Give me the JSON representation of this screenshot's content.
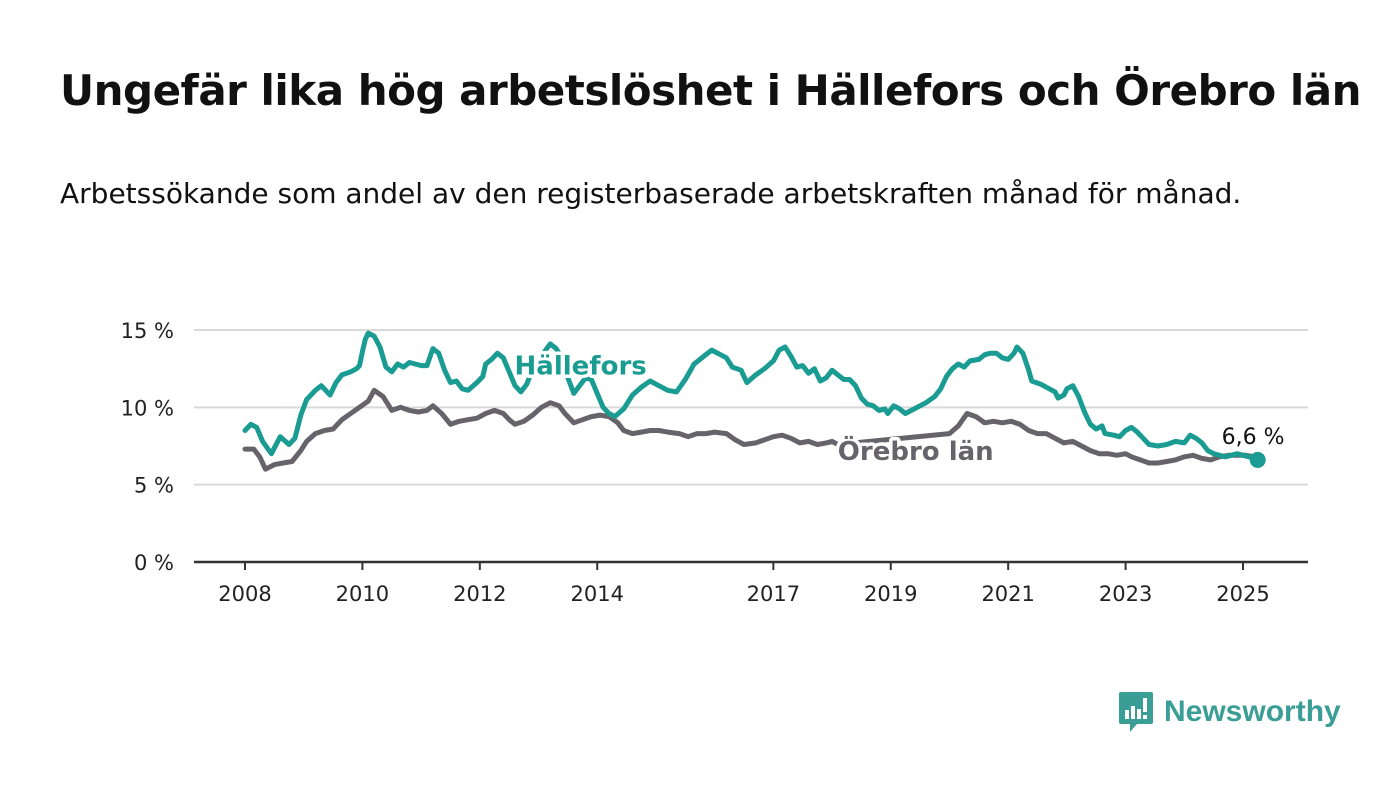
{
  "title": "Ungefär lika hög arbetslöshet i Hällefors och Örebro län",
  "subtitle": "Arbetssökande som andel av den registerbaserade arbetskraften månad för månad.",
  "brand": {
    "name": "Newsworthy",
    "icon": "newsworthy-logo-icon",
    "color": "#3a9e96"
  },
  "chart_data": {
    "type": "line",
    "xlim": [
      2008,
      2025.83
    ],
    "ylim": [
      0,
      15
    ],
    "x_ticks": [
      2008,
      2010,
      2012,
      2014,
      2017,
      2019,
      2021,
      2023,
      2025
    ],
    "y_ticks": [
      0,
      5,
      10,
      15
    ],
    "y_tick_labels": [
      "0 %",
      "5 %",
      "10 %",
      "15 %"
    ],
    "grid": true,
    "series": [
      {
        "name": "Hällefors",
        "color": "#1a9c93",
        "points": [
          [
            2008.0,
            8.5
          ],
          [
            2008.1,
            8.9
          ],
          [
            2008.2,
            8.7
          ],
          [
            2008.3,
            7.8
          ],
          [
            2008.45,
            7.0
          ],
          [
            2008.6,
            8.1
          ],
          [
            2008.75,
            7.6
          ],
          [
            2008.85,
            8.0
          ],
          [
            2008.95,
            9.5
          ],
          [
            2009.05,
            10.5
          ],
          [
            2009.2,
            11.1
          ],
          [
            2009.3,
            11.4
          ],
          [
            2009.45,
            10.8
          ],
          [
            2009.55,
            11.6
          ],
          [
            2009.65,
            12.1
          ],
          [
            2009.8,
            12.3
          ],
          [
            2009.9,
            12.5
          ],
          [
            2009.95,
            12.7
          ],
          [
            2010.0,
            13.6
          ],
          [
            2010.05,
            14.4
          ],
          [
            2010.1,
            14.8
          ],
          [
            2010.2,
            14.6
          ],
          [
            2010.3,
            13.9
          ],
          [
            2010.4,
            12.6
          ],
          [
            2010.5,
            12.3
          ],
          [
            2010.6,
            12.8
          ],
          [
            2010.7,
            12.6
          ],
          [
            2010.8,
            12.9
          ],
          [
            2010.9,
            12.8
          ],
          [
            2011.0,
            12.7
          ],
          [
            2011.1,
            12.7
          ],
          [
            2011.2,
            13.8
          ],
          [
            2011.3,
            13.5
          ],
          [
            2011.4,
            12.4
          ],
          [
            2011.5,
            11.6
          ],
          [
            2011.6,
            11.7
          ],
          [
            2011.7,
            11.2
          ],
          [
            2011.8,
            11.1
          ],
          [
            2011.95,
            11.6
          ],
          [
            2012.05,
            12.0
          ],
          [
            2012.1,
            12.8
          ],
          [
            2012.2,
            13.1
          ],
          [
            2012.3,
            13.5
          ],
          [
            2012.4,
            13.2
          ],
          [
            2012.5,
            12.3
          ],
          [
            2012.6,
            11.4
          ],
          [
            2012.7,
            11.0
          ],
          [
            2012.8,
            11.5
          ],
          [
            2012.9,
            12.5
          ],
          [
            2013.0,
            12.9
          ],
          [
            2013.1,
            13.6
          ],
          [
            2013.2,
            14.1
          ],
          [
            2013.3,
            13.8
          ],
          [
            2013.4,
            13.2
          ],
          [
            2013.5,
            11.9
          ],
          [
            2013.6,
            10.9
          ],
          [
            2013.7,
            11.4
          ],
          [
            2013.8,
            11.9
          ],
          [
            2013.9,
            11.8
          ],
          [
            2014.0,
            10.9
          ],
          [
            2014.1,
            10.0
          ],
          [
            2014.2,
            9.6
          ],
          [
            2014.3,
            9.4
          ],
          [
            2014.45,
            9.9
          ],
          [
            2014.6,
            10.8
          ],
          [
            2014.75,
            11.3
          ],
          [
            2014.9,
            11.7
          ],
          [
            2015.05,
            11.4
          ],
          [
            2015.2,
            11.1
          ],
          [
            2015.35,
            11.0
          ],
          [
            2015.5,
            11.8
          ],
          [
            2015.65,
            12.8
          ],
          [
            2015.75,
            13.1
          ],
          [
            2015.85,
            13.4
          ],
          [
            2015.95,
            13.7
          ],
          [
            2016.1,
            13.4
          ],
          [
            2016.2,
            13.2
          ],
          [
            2016.3,
            12.6
          ],
          [
            2016.45,
            12.4
          ],
          [
            2016.55,
            11.6
          ],
          [
            2016.7,
            12.1
          ],
          [
            2016.85,
            12.5
          ],
          [
            2017.0,
            13.0
          ],
          [
            2017.1,
            13.7
          ],
          [
            2017.2,
            13.9
          ],
          [
            2017.3,
            13.3
          ],
          [
            2017.4,
            12.6
          ],
          [
            2017.5,
            12.7
          ],
          [
            2017.6,
            12.2
          ],
          [
            2017.7,
            12.5
          ],
          [
            2017.8,
            11.7
          ],
          [
            2017.9,
            11.9
          ],
          [
            2018.0,
            12.4
          ],
          [
            2018.1,
            12.1
          ],
          [
            2018.2,
            11.8
          ],
          [
            2018.3,
            11.8
          ],
          [
            2018.4,
            11.4
          ],
          [
            2018.5,
            10.6
          ],
          [
            2018.6,
            10.2
          ],
          [
            2018.7,
            10.1
          ],
          [
            2018.8,
            9.8
          ],
          [
            2018.9,
            9.9
          ],
          [
            2018.95,
            9.6
          ],
          [
            2019.05,
            10.1
          ],
          [
            2019.15,
            9.9
          ],
          [
            2019.25,
            9.6
          ],
          [
            2019.35,
            9.8
          ],
          [
            2019.5,
            10.1
          ],
          [
            2019.6,
            10.3
          ],
          [
            2019.75,
            10.7
          ],
          [
            2019.85,
            11.2
          ],
          [
            2019.95,
            12.0
          ],
          [
            2020.05,
            12.5
          ],
          [
            2020.15,
            12.8
          ],
          [
            2020.25,
            12.6
          ],
          [
            2020.35,
            13.0
          ],
          [
            2020.5,
            13.1
          ],
          [
            2020.6,
            13.4
          ],
          [
            2020.7,
            13.5
          ],
          [
            2020.8,
            13.5
          ],
          [
            2020.9,
            13.2
          ],
          [
            2021.0,
            13.1
          ],
          [
            2021.1,
            13.5
          ],
          [
            2021.15,
            13.9
          ],
          [
            2021.25,
            13.5
          ],
          [
            2021.35,
            12.4
          ],
          [
            2021.4,
            11.7
          ],
          [
            2021.55,
            11.5
          ],
          [
            2021.7,
            11.2
          ],
          [
            2021.8,
            11.0
          ],
          [
            2021.85,
            10.6
          ],
          [
            2021.95,
            10.8
          ],
          [
            2022.0,
            11.2
          ],
          [
            2022.1,
            11.4
          ],
          [
            2022.2,
            10.7
          ],
          [
            2022.3,
            9.7
          ],
          [
            2022.4,
            8.9
          ],
          [
            2022.5,
            8.6
          ],
          [
            2022.6,
            8.8
          ],
          [
            2022.65,
            8.3
          ],
          [
            2022.8,
            8.2
          ],
          [
            2022.9,
            8.1
          ],
          [
            2023.0,
            8.5
          ],
          [
            2023.1,
            8.7
          ],
          [
            2023.2,
            8.4
          ],
          [
            2023.3,
            8.0
          ],
          [
            2023.4,
            7.6
          ],
          [
            2023.55,
            7.5
          ],
          [
            2023.7,
            7.6
          ],
          [
            2023.85,
            7.8
          ],
          [
            2024.0,
            7.7
          ],
          [
            2024.1,
            8.2
          ],
          [
            2024.2,
            8.0
          ],
          [
            2024.3,
            7.7
          ],
          [
            2024.4,
            7.2
          ],
          [
            2024.5,
            7.0
          ],
          [
            2024.6,
            6.9
          ],
          [
            2024.7,
            6.8
          ],
          [
            2024.8,
            6.9
          ],
          [
            2024.9,
            7.0
          ],
          [
            2025.0,
            6.9
          ],
          [
            2025.1,
            6.8
          ],
          [
            2025.25,
            6.6
          ]
        ]
      },
      {
        "name": "Örebro län",
        "color": "#66646a",
        "points": [
          [
            2008.0,
            7.3
          ],
          [
            2008.15,
            7.3
          ],
          [
            2008.25,
            6.8
          ],
          [
            2008.35,
            6.0
          ],
          [
            2008.5,
            6.3
          ],
          [
            2008.65,
            6.4
          ],
          [
            2008.8,
            6.5
          ],
          [
            2008.95,
            7.2
          ],
          [
            2009.05,
            7.8
          ],
          [
            2009.2,
            8.3
          ],
          [
            2009.35,
            8.5
          ],
          [
            2009.5,
            8.6
          ],
          [
            2009.65,
            9.2
          ],
          [
            2009.8,
            9.6
          ],
          [
            2009.95,
            10.0
          ],
          [
            2010.1,
            10.4
          ],
          [
            2010.2,
            11.1
          ],
          [
            2010.35,
            10.7
          ],
          [
            2010.5,
            9.8
          ],
          [
            2010.65,
            10.0
          ],
          [
            2010.8,
            9.8
          ],
          [
            2010.95,
            9.7
          ],
          [
            2011.1,
            9.8
          ],
          [
            2011.2,
            10.1
          ],
          [
            2011.35,
            9.6
          ],
          [
            2011.5,
            8.9
          ],
          [
            2011.65,
            9.1
          ],
          [
            2011.8,
            9.2
          ],
          [
            2011.95,
            9.3
          ],
          [
            2012.1,
            9.6
          ],
          [
            2012.25,
            9.8
          ],
          [
            2012.4,
            9.6
          ],
          [
            2012.5,
            9.2
          ],
          [
            2012.6,
            8.9
          ],
          [
            2012.75,
            9.1
          ],
          [
            2012.9,
            9.5
          ],
          [
            2013.05,
            10.0
          ],
          [
            2013.2,
            10.3
          ],
          [
            2013.35,
            10.1
          ],
          [
            2013.45,
            9.6
          ],
          [
            2013.6,
            9.0
          ],
          [
            2013.75,
            9.2
          ],
          [
            2013.9,
            9.4
          ],
          [
            2014.05,
            9.5
          ],
          [
            2014.2,
            9.4
          ],
          [
            2014.35,
            9.0
          ],
          [
            2014.45,
            8.5
          ],
          [
            2014.6,
            8.3
          ],
          [
            2014.75,
            8.4
          ],
          [
            2014.9,
            8.5
          ],
          [
            2015.05,
            8.5
          ],
          [
            2015.2,
            8.4
          ],
          [
            2015.4,
            8.3
          ],
          [
            2015.55,
            8.1
          ],
          [
            2015.7,
            8.3
          ],
          [
            2015.85,
            8.3
          ],
          [
            2016.0,
            8.4
          ],
          [
            2016.2,
            8.3
          ],
          [
            2016.35,
            7.9
          ],
          [
            2016.5,
            7.6
          ],
          [
            2016.7,
            7.7
          ],
          [
            2016.85,
            7.9
          ],
          [
            2017.0,
            8.1
          ],
          [
            2017.15,
            8.2
          ],
          [
            2017.3,
            8.0
          ],
          [
            2017.45,
            7.7
          ],
          [
            2017.6,
            7.8
          ],
          [
            2017.75,
            7.6
          ],
          [
            2017.9,
            7.7
          ],
          [
            2018.0,
            7.8
          ],
          [
            2018.1,
            7.6
          ],
          [
            2020.0,
            8.3
          ],
          [
            2020.15,
            8.8
          ],
          [
            2020.3,
            9.6
          ],
          [
            2020.45,
            9.4
          ],
          [
            2020.6,
            9.0
          ],
          [
            2020.75,
            9.1
          ],
          [
            2020.9,
            9.0
          ],
          [
            2021.05,
            9.1
          ],
          [
            2021.2,
            8.9
          ],
          [
            2021.35,
            8.5
          ],
          [
            2021.5,
            8.3
          ],
          [
            2021.65,
            8.3
          ],
          [
            2021.8,
            8.0
          ],
          [
            2021.95,
            7.7
          ],
          [
            2022.1,
            7.8
          ],
          [
            2022.25,
            7.5
          ],
          [
            2022.4,
            7.2
          ],
          [
            2022.55,
            7.0
          ],
          [
            2022.7,
            7.0
          ],
          [
            2022.85,
            6.9
          ],
          [
            2023.0,
            7.0
          ],
          [
            2023.1,
            6.8
          ],
          [
            2023.25,
            6.6
          ],
          [
            2023.4,
            6.4
          ],
          [
            2023.55,
            6.4
          ],
          [
            2023.7,
            6.5
          ],
          [
            2023.85,
            6.6
          ],
          [
            2024.0,
            6.8
          ],
          [
            2024.15,
            6.9
          ],
          [
            2024.3,
            6.7
          ],
          [
            2024.45,
            6.6
          ],
          [
            2024.6,
            6.8
          ],
          [
            2024.75,
            6.9
          ],
          [
            2024.9,
            6.9
          ],
          [
            2025.05,
            6.9
          ],
          [
            2025.2,
            6.8
          ]
        ]
      }
    ],
    "annotations": [
      {
        "text": "Hällefors",
        "series": 0,
        "anchor": [
          2013.0,
          12.5
        ]
      },
      {
        "text": "Örebro län",
        "series": 1,
        "anchor": [
          2018.2,
          7.3
        ]
      },
      {
        "text": "6,6 %",
        "anchor": [
          2025.25,
          6.6
        ]
      }
    ]
  }
}
